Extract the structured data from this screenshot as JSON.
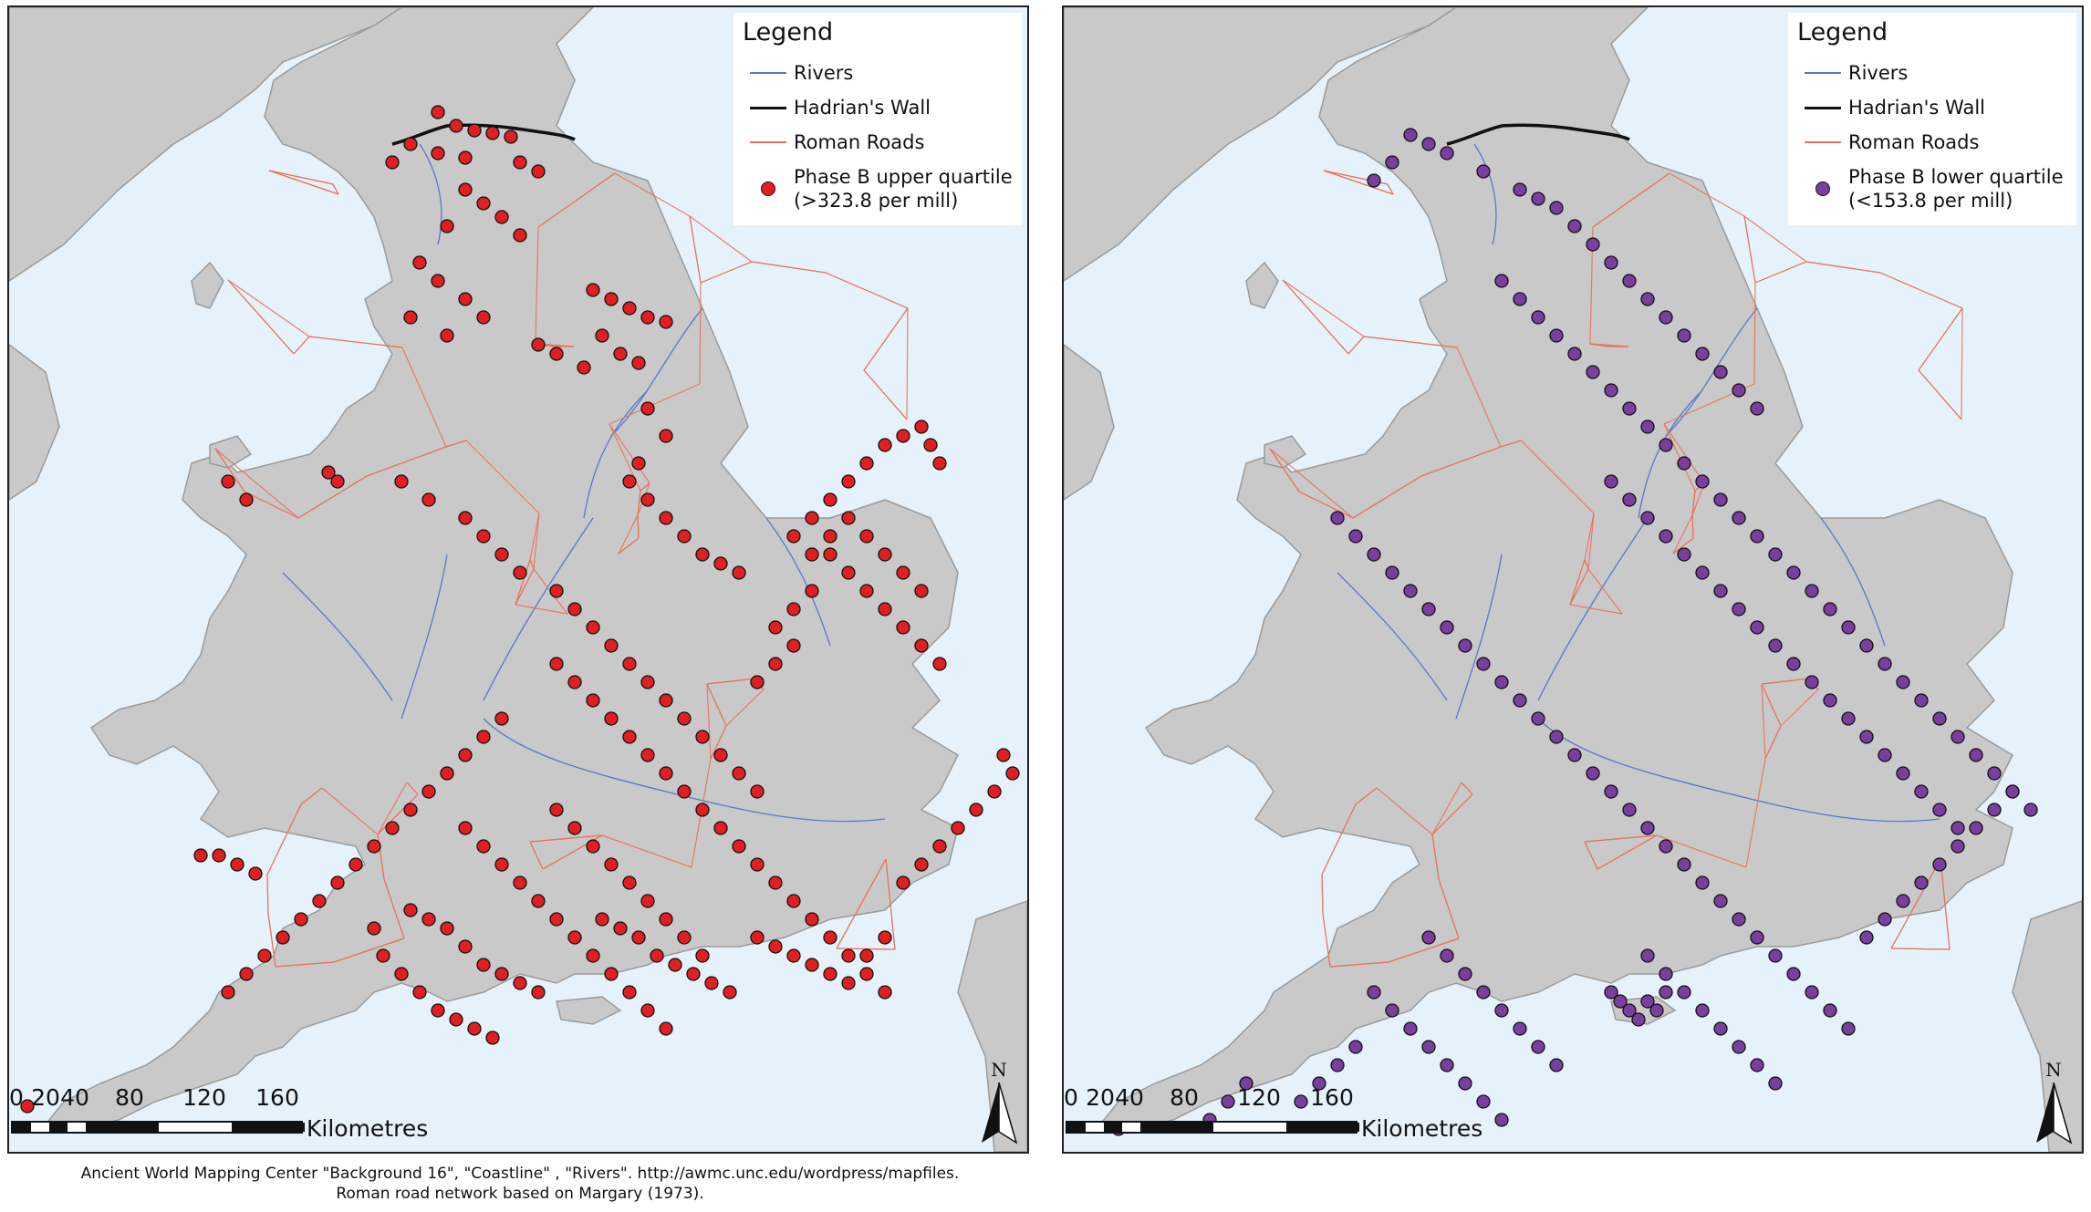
{
  "colors": {
    "sea": "#e6f2fb",
    "land": "#c9c9c9",
    "land_edge": "#9a9a9a",
    "river": "#5a78c8",
    "wall": "#111111",
    "road": "#e8735a",
    "phase_upper": "#e02020",
    "phase_lower": "#7a3f9e"
  },
  "panels": [
    {
      "legend": {
        "title": "Legend",
        "items": [
          {
            "label": "Rivers",
            "kind": "line",
            "color": "#5a78c8"
          },
          {
            "label": "Hadrian's Wall",
            "kind": "line",
            "color": "#111111"
          },
          {
            "label": "Roman Roads",
            "kind": "line",
            "color": "#e8735a"
          },
          {
            "label": "Phase B upper quartile\n(>323.8 per mill)",
            "kind": "dot",
            "color": "#e02020"
          }
        ]
      },
      "sites": [
        [
          470,
          115
        ],
        [
          490,
          130
        ],
        [
          510,
          135
        ],
        [
          530,
          138
        ],
        [
          550,
          142
        ],
        [
          470,
          160
        ],
        [
          500,
          165
        ],
        [
          440,
          150
        ],
        [
          420,
          170
        ],
        [
          560,
          170
        ],
        [
          580,
          180
        ],
        [
          500,
          200
        ],
        [
          520,
          215
        ],
        [
          540,
          230
        ],
        [
          560,
          250
        ],
        [
          480,
          240
        ],
        [
          450,
          280
        ],
        [
          470,
          300
        ],
        [
          500,
          320
        ],
        [
          520,
          340
        ],
        [
          480,
          360
        ],
        [
          440,
          340
        ],
        [
          640,
          310
        ],
        [
          660,
          320
        ],
        [
          680,
          330
        ],
        [
          700,
          340
        ],
        [
          720,
          345
        ],
        [
          650,
          360
        ],
        [
          670,
          380
        ],
        [
          690,
          390
        ],
        [
          630,
          395
        ],
        [
          600,
          380
        ],
        [
          580,
          370
        ],
        [
          700,
          440
        ],
        [
          720,
          470
        ],
        [
          690,
          500
        ],
        [
          680,
          520
        ],
        [
          700,
          540
        ],
        [
          720,
          560
        ],
        [
          740,
          580
        ],
        [
          760,
          600
        ],
        [
          780,
          610
        ],
        [
          800,
          620
        ],
        [
          350,
          510
        ],
        [
          360,
          520
        ],
        [
          430,
          520
        ],
        [
          460,
          540
        ],
        [
          500,
          560
        ],
        [
          520,
          580
        ],
        [
          540,
          600
        ],
        [
          560,
          620
        ],
        [
          600,
          640
        ],
        [
          620,
          660
        ],
        [
          640,
          680
        ],
        [
          660,
          700
        ],
        [
          680,
          720
        ],
        [
          700,
          740
        ],
        [
          720,
          760
        ],
        [
          740,
          780
        ],
        [
          760,
          800
        ],
        [
          780,
          820
        ],
        [
          800,
          840
        ],
        [
          820,
          860
        ],
        [
          860,
          580
        ],
        [
          880,
          560
        ],
        [
          900,
          540
        ],
        [
          920,
          520
        ],
        [
          940,
          500
        ],
        [
          960,
          480
        ],
        [
          980,
          470
        ],
        [
          1000,
          460
        ],
        [
          1010,
          480
        ],
        [
          1020,
          500
        ],
        [
          900,
          600
        ],
        [
          920,
          620
        ],
        [
          940,
          640
        ],
        [
          960,
          660
        ],
        [
          980,
          680
        ],
        [
          1000,
          700
        ],
        [
          1020,
          720
        ],
        [
          880,
          640
        ],
        [
          860,
          660
        ],
        [
          840,
          680
        ],
        [
          880,
          600
        ],
        [
          900,
          580
        ],
        [
          920,
          560
        ],
        [
          940,
          580
        ],
        [
          960,
          600
        ],
        [
          980,
          620
        ],
        [
          1000,
          640
        ],
        [
          860,
          700
        ],
        [
          840,
          720
        ],
        [
          820,
          740
        ],
        [
          600,
          720
        ],
        [
          620,
          740
        ],
        [
          640,
          760
        ],
        [
          660,
          780
        ],
        [
          680,
          800
        ],
        [
          700,
          820
        ],
        [
          720,
          840
        ],
        [
          740,
          860
        ],
        [
          760,
          880
        ],
        [
          780,
          900
        ],
        [
          800,
          920
        ],
        [
          820,
          940
        ],
        [
          840,
          960
        ],
        [
          860,
          980
        ],
        [
          880,
          1000
        ],
        [
          900,
          1020
        ],
        [
          920,
          1040
        ],
        [
          940,
          1060
        ],
        [
          960,
          1080
        ],
        [
          540,
          780
        ],
        [
          520,
          800
        ],
        [
          500,
          820
        ],
        [
          480,
          840
        ],
        [
          460,
          860
        ],
        [
          440,
          880
        ],
        [
          420,
          900
        ],
        [
          400,
          920
        ],
        [
          380,
          940
        ],
        [
          360,
          960
        ],
        [
          340,
          980
        ],
        [
          320,
          1000
        ],
        [
          300,
          1020
        ],
        [
          280,
          1040
        ],
        [
          260,
          1060
        ],
        [
          240,
          1080
        ],
        [
          500,
          900
        ],
        [
          520,
          920
        ],
        [
          540,
          940
        ],
        [
          560,
          960
        ],
        [
          580,
          980
        ],
        [
          600,
          1000
        ],
        [
          620,
          1020
        ],
        [
          640,
          1040
        ],
        [
          660,
          1060
        ],
        [
          680,
          1080
        ],
        [
          700,
          1100
        ],
        [
          720,
          1120
        ],
        [
          600,
          880
        ],
        [
          620,
          900
        ],
        [
          640,
          920
        ],
        [
          660,
          940
        ],
        [
          680,
          960
        ],
        [
          700,
          980
        ],
        [
          720,
          1000
        ],
        [
          740,
          1020
        ],
        [
          760,
          1040
        ],
        [
          440,
          990
        ],
        [
          460,
          1000
        ],
        [
          480,
          1010
        ],
        [
          500,
          1030
        ],
        [
          520,
          1050
        ],
        [
          540,
          1060
        ],
        [
          560,
          1070
        ],
        [
          580,
          1080
        ],
        [
          400,
          1010
        ],
        [
          410,
          1040
        ],
        [
          430,
          1060
        ],
        [
          450,
          1080
        ],
        [
          470,
          1100
        ],
        [
          490,
          1110
        ],
        [
          510,
          1120
        ],
        [
          530,
          1130
        ],
        [
          650,
          1000
        ],
        [
          670,
          1010
        ],
        [
          690,
          1020
        ],
        [
          710,
          1040
        ],
        [
          730,
          1050
        ],
        [
          750,
          1060
        ],
        [
          770,
          1070
        ],
        [
          790,
          1080
        ],
        [
          820,
          1020
        ],
        [
          840,
          1030
        ],
        [
          860,
          1040
        ],
        [
          880,
          1050
        ],
        [
          900,
          1060
        ],
        [
          920,
          1070
        ],
        [
          940,
          1040
        ],
        [
          960,
          1020
        ],
        [
          980,
          960
        ],
        [
          1000,
          940
        ],
        [
          1020,
          920
        ],
        [
          1040,
          900
        ],
        [
          1060,
          880
        ],
        [
          1080,
          860
        ],
        [
          1100,
          840
        ],
        [
          1090,
          820
        ],
        [
          230,
          930
        ],
        [
          250,
          940
        ],
        [
          270,
          950
        ],
        [
          210,
          930
        ],
        [
          20,
          1205
        ],
        [
          240,
          520
        ],
        [
          260,
          540
        ]
      ],
      "scale": {
        "ticks": [
          "0",
          "20",
          "40",
          "80",
          "120",
          "160"
        ],
        "unit": "Kilometres"
      },
      "north": "N"
    },
    {
      "legend": {
        "title": "Legend",
        "items": [
          {
            "label": "Rivers",
            "kind": "line",
            "color": "#5a78c8"
          },
          {
            "label": "Hadrian's Wall",
            "kind": "line",
            "color": "#111111"
          },
          {
            "label": "Roman Roads",
            "kind": "line",
            "color": "#e8735a"
          },
          {
            "label": "Phase B lower quartile\n(<153.8 per mill)",
            "kind": "dot",
            "color": "#7a3f9e"
          }
        ]
      },
      "sites": [
        [
          380,
          140
        ],
        [
          400,
          150
        ],
        [
          420,
          160
        ],
        [
          360,
          170
        ],
        [
          340,
          190
        ],
        [
          460,
          180
        ],
        [
          500,
          200
        ],
        [
          520,
          210
        ],
        [
          540,
          220
        ],
        [
          560,
          240
        ],
        [
          580,
          260
        ],
        [
          600,
          280
        ],
        [
          620,
          300
        ],
        [
          640,
          320
        ],
        [
          660,
          340
        ],
        [
          680,
          360
        ],
        [
          700,
          380
        ],
        [
          720,
          400
        ],
        [
          740,
          420
        ],
        [
          760,
          440
        ],
        [
          480,
          300
        ],
        [
          500,
          320
        ],
        [
          520,
          340
        ],
        [
          540,
          360
        ],
        [
          560,
          380
        ],
        [
          580,
          400
        ],
        [
          600,
          420
        ],
        [
          620,
          440
        ],
        [
          640,
          460
        ],
        [
          660,
          480
        ],
        [
          680,
          500
        ],
        [
          700,
          520
        ],
        [
          720,
          540
        ],
        [
          740,
          560
        ],
        [
          760,
          580
        ],
        [
          780,
          600
        ],
        [
          800,
          620
        ],
        [
          820,
          640
        ],
        [
          840,
          660
        ],
        [
          860,
          680
        ],
        [
          880,
          700
        ],
        [
          900,
          720
        ],
        [
          920,
          740
        ],
        [
          940,
          760
        ],
        [
          960,
          780
        ],
        [
          980,
          800
        ],
        [
          1000,
          820
        ],
        [
          1020,
          840
        ],
        [
          1040,
          860
        ],
        [
          1060,
          880
        ],
        [
          600,
          520
        ],
        [
          620,
          540
        ],
        [
          640,
          560
        ],
        [
          660,
          580
        ],
        [
          680,
          600
        ],
        [
          700,
          620
        ],
        [
          720,
          640
        ],
        [
          740,
          660
        ],
        [
          760,
          680
        ],
        [
          780,
          700
        ],
        [
          800,
          720
        ],
        [
          820,
          740
        ],
        [
          840,
          760
        ],
        [
          860,
          780
        ],
        [
          880,
          800
        ],
        [
          900,
          820
        ],
        [
          920,
          840
        ],
        [
          940,
          860
        ],
        [
          960,
          880
        ],
        [
          980,
          900
        ],
        [
          300,
          560
        ],
        [
          320,
          580
        ],
        [
          340,
          600
        ],
        [
          360,
          620
        ],
        [
          380,
          640
        ],
        [
          400,
          660
        ],
        [
          420,
          680
        ],
        [
          440,
          700
        ],
        [
          460,
          720
        ],
        [
          480,
          740
        ],
        [
          500,
          760
        ],
        [
          520,
          780
        ],
        [
          540,
          800
        ],
        [
          560,
          820
        ],
        [
          580,
          840
        ],
        [
          600,
          860
        ],
        [
          620,
          880
        ],
        [
          640,
          900
        ],
        [
          660,
          920
        ],
        [
          680,
          940
        ],
        [
          700,
          960
        ],
        [
          720,
          980
        ],
        [
          740,
          1000
        ],
        [
          760,
          1020
        ],
        [
          780,
          1040
        ],
        [
          800,
          1060
        ],
        [
          820,
          1080
        ],
        [
          840,
          1100
        ],
        [
          860,
          1120
        ],
        [
          880,
          1020
        ],
        [
          900,
          1000
        ],
        [
          920,
          980
        ],
        [
          940,
          960
        ],
        [
          960,
          940
        ],
        [
          980,
          920
        ],
        [
          1000,
          900
        ],
        [
          1020,
          880
        ],
        [
          1040,
          860
        ],
        [
          640,
          1040
        ],
        [
          660,
          1060
        ],
        [
          680,
          1080
        ],
        [
          700,
          1100
        ],
        [
          720,
          1120
        ],
        [
          740,
          1140
        ],
        [
          760,
          1160
        ],
        [
          780,
          1180
        ],
        [
          400,
          1020
        ],
        [
          420,
          1040
        ],
        [
          440,
          1060
        ],
        [
          460,
          1080
        ],
        [
          480,
          1100
        ],
        [
          500,
          1120
        ],
        [
          520,
          1140
        ],
        [
          540,
          1160
        ],
        [
          340,
          1080
        ],
        [
          360,
          1100
        ],
        [
          380,
          1120
        ],
        [
          400,
          1140
        ],
        [
          420,
          1160
        ],
        [
          440,
          1180
        ],
        [
          460,
          1200
        ],
        [
          480,
          1220
        ],
        [
          260,
          1200
        ],
        [
          280,
          1180
        ],
        [
          300,
          1160
        ],
        [
          320,
          1140
        ],
        [
          200,
          1180
        ],
        [
          180,
          1200
        ],
        [
          160,
          1220
        ],
        [
          60,
          1230
        ],
        [
          600,
          1080
        ],
        [
          610,
          1090
        ],
        [
          620,
          1100
        ],
        [
          630,
          1110
        ],
        [
          640,
          1090
        ],
        [
          650,
          1100
        ],
        [
          660,
          1080
        ]
      ],
      "scale": {
        "ticks": [
          "0",
          "20",
          "40",
          "80",
          "120",
          "160"
        ],
        "unit": "Kilometres"
      },
      "north": "N"
    }
  ],
  "credits": {
    "line1": "Ancient World Mapping Center \"Background 16\", \"Coastline\" , \"Rivers\". http://awmc.unc.edu/wordpress/mapfiles.",
    "line2": "Roman road network based on Margary (1973)."
  }
}
